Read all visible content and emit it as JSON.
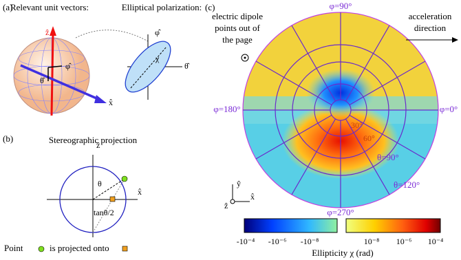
{
  "panel_a": {
    "label": "(a)",
    "heading_left": "Relevant unit vectors:",
    "heading_right": "Elliptical polarization:",
    "z_hat": "ẑ",
    "phi_hat": "φ̂",
    "theta_hat": "θ̂",
    "x_hat": "x̂",
    "ellipse_phi_hat": "φ̂",
    "ellipse_theta_hat": "θ̂",
    "chi": "χ"
  },
  "panel_b": {
    "label": "(b)",
    "heading": "Stereographic projection",
    "z_hat": "ẑ",
    "x_hat": "x̂",
    "theta": "θ",
    "tan_label": "tanθ/2",
    "caption_start": "Point",
    "caption_end": "is projected onto"
  },
  "panel_c": {
    "label": "(c)",
    "dipole_note": [
      "electric dipole",
      "points out of",
      "the page"
    ],
    "acceleration_note": [
      "acceleration",
      "direction"
    ],
    "phi_labels": [
      "φ=90°",
      "φ=180°",
      "φ=0°",
      "φ=270°"
    ],
    "theta_labels": [
      "30°",
      "60°",
      "θ=90°",
      "θ=120°"
    ],
    "axes": {
      "y_hat": "ŷ",
      "z_hat": "ẑ",
      "x_hat": "x̂"
    },
    "colorbar": {
      "ticks_negative": [
        "-10⁻⁴",
        "-10⁻⁶",
        "-10⁻⁸"
      ],
      "ticks_positive": [
        "10⁻⁸",
        "10⁻⁶",
        "10⁻⁴"
      ],
      "title": "Ellipticity χ (rad)"
    }
  }
}
